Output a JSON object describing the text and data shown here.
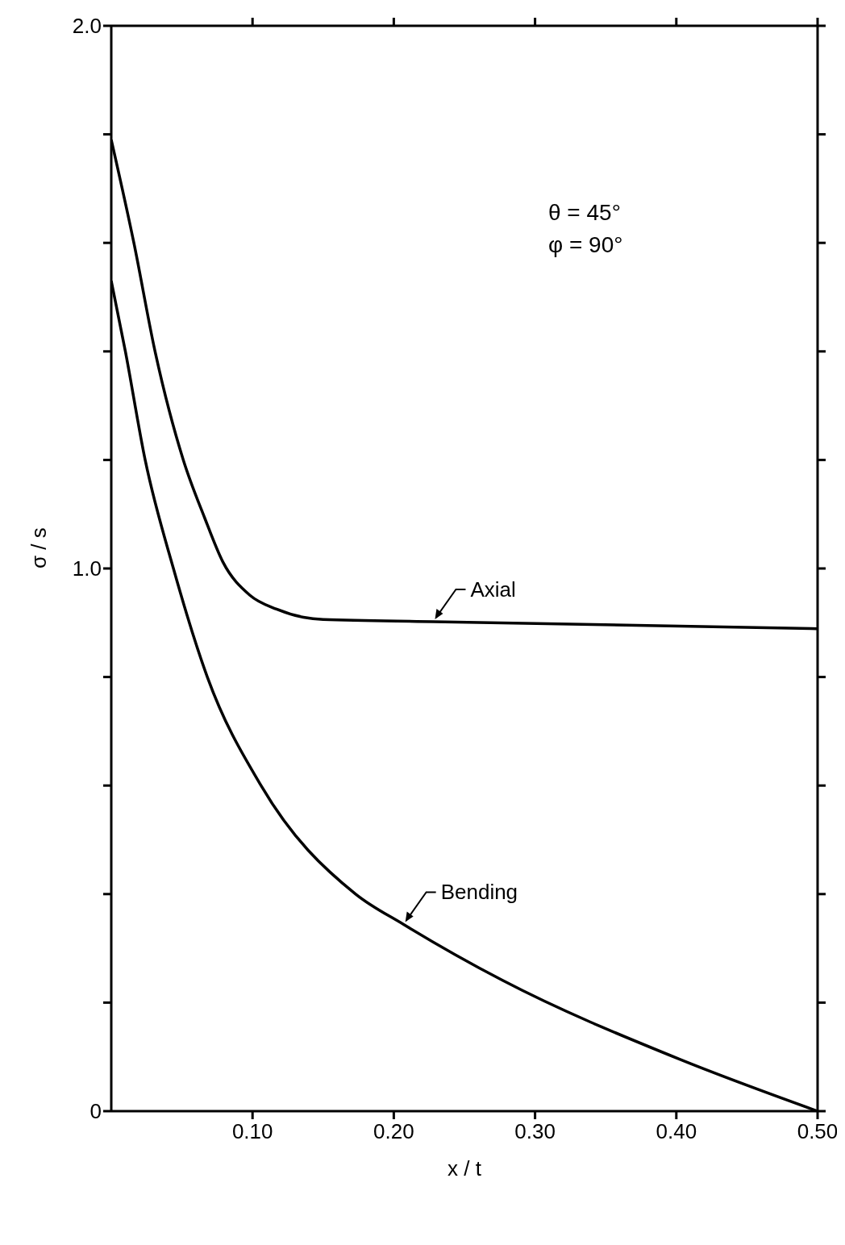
{
  "chart_data": {
    "type": "line",
    "xlabel": "x / t",
    "ylabel": "σ / s",
    "annotations": [
      "θ = 45°",
      "φ = 90°"
    ],
    "xlim": [
      0,
      0.5
    ],
    "ylim": [
      0,
      2.0
    ],
    "xticks": [
      {
        "value": 0.1,
        "label": "0.10"
      },
      {
        "value": 0.2,
        "label": "0.20"
      },
      {
        "value": 0.3,
        "label": "0.30"
      },
      {
        "value": 0.4,
        "label": "0.40"
      },
      {
        "value": 0.5,
        "label": "0.50"
      }
    ],
    "yticks": [
      0,
      {
        "value": 0.2,
        "label": null
      },
      {
        "value": 0.4,
        "label": null
      },
      {
        "value": 0.6,
        "label": null
      },
      {
        "value": 0.8,
        "label": null
      },
      {
        "value": 1.0,
        "label": "1.0"
      },
      {
        "value": 1.2,
        "label": null
      },
      {
        "value": 1.4,
        "label": null
      },
      {
        "value": 1.6,
        "label": null
      },
      {
        "value": 1.8,
        "label": null
      },
      {
        "value": 2.0,
        "label": "2.0"
      }
    ],
    "grid": false,
    "legend": "center",
    "marker": "none",
    "line_style": "solid",
    "series": [
      {
        "name": "Axial",
        "color": "#000000",
        "x": [
          0,
          0.016,
          0.031,
          0.051,
          0.066,
          0.079,
          0.098,
          0.117,
          0.136,
          0.15,
          0.228,
          0.5
        ],
        "values": [
          1.79,
          1.6,
          1.4,
          1.2,
          1.094,
          1.012,
          0.951,
          0.925,
          0.91,
          0.906,
          0.902,
          0.889
        ]
      },
      {
        "name": "Bending",
        "color": "#000000",
        "x": [
          0,
          0.01,
          0.024,
          0.044,
          0.068,
          0.106,
          0.173,
          0.207,
          0.277,
          0.402,
          0.5
        ],
        "values": [
          1.53,
          1.4,
          1.2,
          1.0,
          0.8,
          0.6,
          0.4,
          0.344,
          0.241,
          0.096,
          0
        ]
      }
    ]
  }
}
